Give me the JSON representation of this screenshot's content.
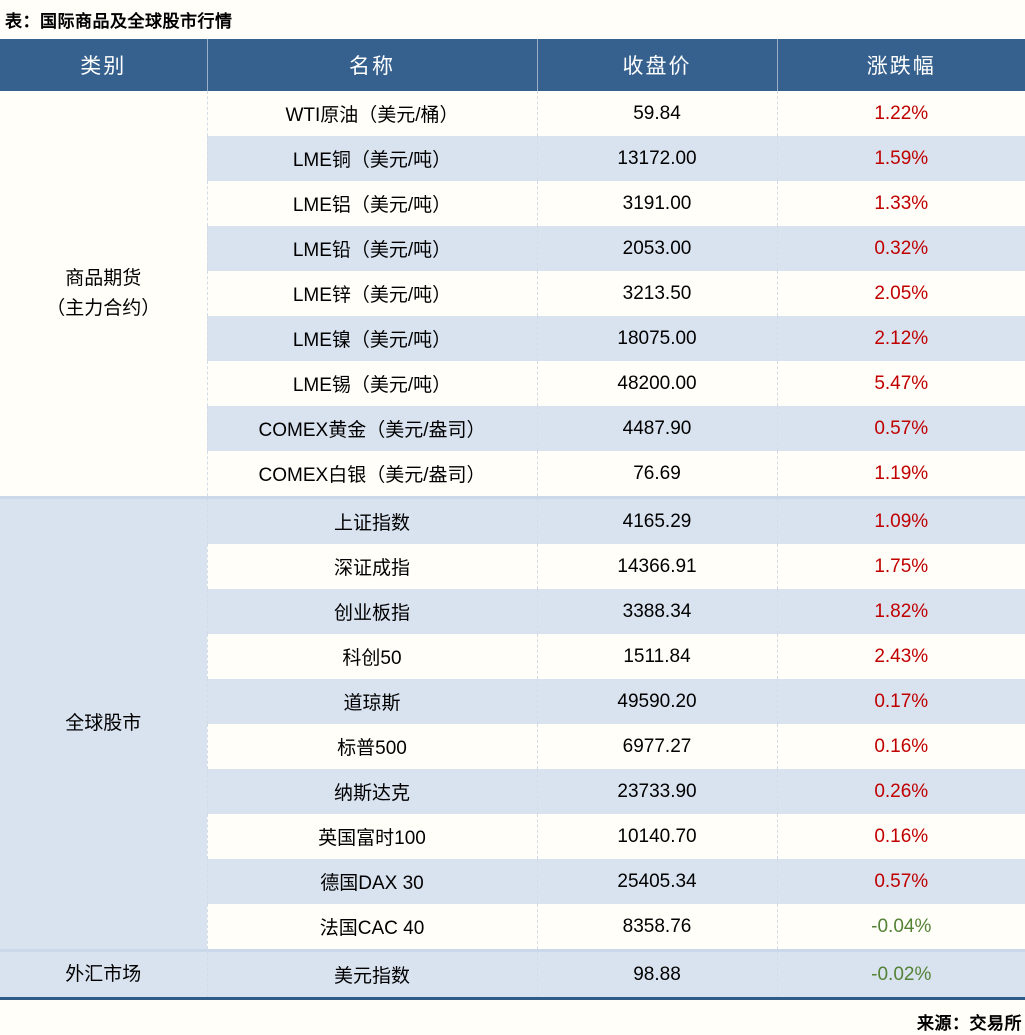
{
  "title": "表：国际商品及全球股市行情",
  "source": "来源：交易所",
  "colors": {
    "header_bg": "#36618E",
    "alt_row_bg": "#D9E2EF",
    "up_change": "#C00000",
    "down_change": "#548235",
    "section_divider": "#CBD8EA",
    "table_bottom_border": "#2F5B88"
  },
  "table": {
    "columns": [
      "类别",
      "名称",
      "收盘价",
      "涨跌幅"
    ],
    "sections": [
      {
        "category": "商品期货\n（主力合约）",
        "rows": [
          {
            "name": "WTI原油（美元/桶）",
            "close": "59.84",
            "change": "1.22%",
            "direction": "up"
          },
          {
            "name": "LME铜（美元/吨）",
            "close": "13172.00",
            "change": "1.59%",
            "direction": "up"
          },
          {
            "name": "LME铝（美元/吨）",
            "close": "3191.00",
            "change": "1.33%",
            "direction": "up"
          },
          {
            "name": "LME铅（美元/吨）",
            "close": "2053.00",
            "change": "0.32%",
            "direction": "up"
          },
          {
            "name": "LME锌（美元/吨）",
            "close": "3213.50",
            "change": "2.05%",
            "direction": "up"
          },
          {
            "name": "LME镍（美元/吨）",
            "close": "18075.00",
            "change": "2.12%",
            "direction": "up"
          },
          {
            "name": "LME锡（美元/吨）",
            "close": "48200.00",
            "change": "5.47%",
            "direction": "up"
          },
          {
            "name": "COMEX黄金（美元/盎司）",
            "close": "4487.90",
            "change": "0.57%",
            "direction": "up"
          },
          {
            "name": "COMEX白银（美元/盎司）",
            "close": "76.69",
            "change": "1.19%",
            "direction": "up"
          }
        ]
      },
      {
        "category": "全球股市",
        "rows": [
          {
            "name": "上证指数",
            "close": "4165.29",
            "change": "1.09%",
            "direction": "up"
          },
          {
            "name": "深证成指",
            "close": "14366.91",
            "change": "1.75%",
            "direction": "up"
          },
          {
            "name": "创业板指",
            "close": "3388.34",
            "change": "1.82%",
            "direction": "up"
          },
          {
            "name": "科创50",
            "close": "1511.84",
            "change": "2.43%",
            "direction": "up"
          },
          {
            "name": "道琼斯",
            "close": "49590.20",
            "change": "0.17%",
            "direction": "up"
          },
          {
            "name": "标普500",
            "close": "6977.27",
            "change": "0.16%",
            "direction": "up"
          },
          {
            "name": "纳斯达克",
            "close": "23733.90",
            "change": "0.26%",
            "direction": "up"
          },
          {
            "name": "英国富时100",
            "close": "10140.70",
            "change": "0.16%",
            "direction": "up"
          },
          {
            "name": "德国DAX 30",
            "close": "25405.34",
            "change": "0.57%",
            "direction": "up"
          },
          {
            "name": "法国CAC 40",
            "close": "8358.76",
            "change": "-0.04%",
            "direction": "down"
          }
        ]
      },
      {
        "category": "外汇市场",
        "rows": [
          {
            "name": "美元指数",
            "close": "98.88",
            "change": "-0.02%",
            "direction": "down"
          }
        ]
      }
    ]
  }
}
